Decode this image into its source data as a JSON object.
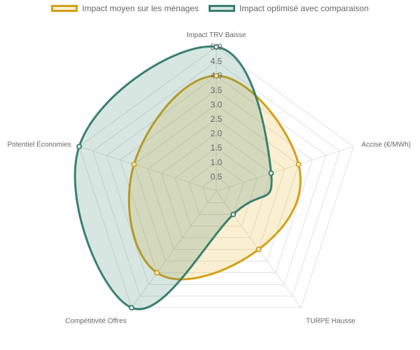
{
  "chart_data": {
    "type": "radar",
    "title": "",
    "categories": [
      "Impact TRV Baisse",
      "Accise (€/MWh)",
      "TURPE Hausse",
      "Compétitivité Offres",
      "Potentiel Économies"
    ],
    "series": [
      {
        "name": "Impact moyen sur les ménages",
        "values": [
          4.0,
          3.0,
          2.5,
          3.5,
          3.0
        ],
        "color": "#d4a017",
        "fill": "rgba(230,183,46,0.22)"
      },
      {
        "name": "Impact optimisé avec comparaison",
        "values": [
          5.0,
          2.0,
          1.0,
          5.0,
          5.0
        ],
        "color": "#3a8070",
        "fill": "rgba(58,128,112,0.2)"
      }
    ],
    "r_ticks": [
      "0.5",
      "1.0",
      "1.5",
      "2.0",
      "2.5",
      "3.0",
      "3.5",
      "4.0",
      "4.5",
      "5.0"
    ],
    "r_range": [
      0,
      5
    ],
    "grid": true,
    "legend_position": "top"
  }
}
